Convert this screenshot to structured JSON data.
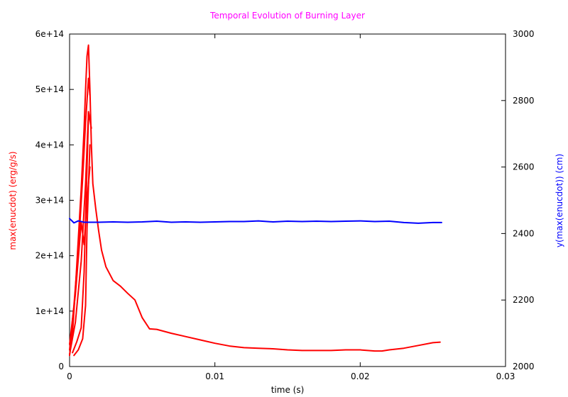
{
  "chart_data": {
    "type": "line",
    "title": "Temporal Evolution of Burning Layer",
    "title_color": "#ff00ff",
    "xlabel": "time (s)",
    "ylabel_left": "max(enucdot) (erg/g/s)",
    "ylabel_left_color": "#ff0000",
    "ylabel_right": "y(max(enucdot)) (cm)",
    "ylabel_right_color": "#0000ff",
    "xlim": [
      0,
      0.03
    ],
    "ylim_left": [
      0,
      600000000000000.0
    ],
    "ylim_right": [
      2000,
      3000
    ],
    "x_ticks": [
      {
        "value": 0,
        "label": "0"
      },
      {
        "value": 0.01,
        "label": "0.01"
      },
      {
        "value": 0.02,
        "label": "0.02"
      },
      {
        "value": 0.03,
        "label": "0.03"
      }
    ],
    "y_left_ticks": [
      {
        "value": 0,
        "label": "0"
      },
      {
        "value": 100000000000000.0,
        "label": "1e+14"
      },
      {
        "value": 200000000000000.0,
        "label": "2e+14"
      },
      {
        "value": 300000000000000.0,
        "label": "3e+14"
      },
      {
        "value": 400000000000000.0,
        "label": "4e+14"
      },
      {
        "value": 500000000000000.0,
        "label": "5e+14"
      },
      {
        "value": 600000000000000.0,
        "label": "6e+14"
      }
    ],
    "y_right_ticks": [
      {
        "value": 2000,
        "label": "2000"
      },
      {
        "value": 2200,
        "label": "2200"
      },
      {
        "value": 2400,
        "label": "2400"
      },
      {
        "value": 2600,
        "label": "2600"
      },
      {
        "value": 2800,
        "label": "2800"
      },
      {
        "value": 3000,
        "label": "3000"
      }
    ],
    "grid": false,
    "series": [
      {
        "axis": "left",
        "color": "#ff0000",
        "x": [
          0,
          0.0002,
          0.0004,
          0.0006,
          0.0008,
          0.001,
          0.0011,
          0.0012,
          0.0013,
          0.0014,
          0.0015,
          0.0016,
          0.0018,
          0.002,
          0.0022,
          0.0025,
          0.003,
          0.0035,
          0.004,
          0.0045,
          0.005,
          0.0055,
          0.006,
          0.007,
          0.008,
          0.009,
          0.01,
          0.011,
          0.012,
          0.013,
          0.014,
          0.015,
          0.016,
          0.017,
          0.018,
          0.019,
          0.02,
          0.021,
          0.0215,
          0.022,
          0.023,
          0.024,
          0.025,
          0.0255
        ],
        "values": [
          20000000000000.0,
          60000000000000.0,
          140000000000000.0,
          230000000000000.0,
          320000000000000.0,
          430000000000000.0,
          500000000000000.0,
          560000000000000.0,
          580000000000000.0,
          500000000000000.0,
          400000000000000.0,
          330000000000000.0,
          285000000000000.0,
          245000000000000.0,
          210000000000000.0,
          180000000000000.0,
          155000000000000.0,
          145000000000000.0,
          132000000000000.0,
          120000000000000.0,
          88000000000000.0,
          68000000000000.0,
          67000000000000.0,
          60000000000000.0,
          54000000000000.0,
          48000000000000.0,
          42000000000000.0,
          37000000000000.0,
          34000000000000.0,
          33000000000000.0,
          32000000000000.0,
          30000000000000.0,
          29000000000000.0,
          29000000000000.0,
          29000000000000.0,
          30000000000000.0,
          30000000000000.0,
          28000000000000.0,
          28000000000000.0,
          30000000000000.0,
          33000000000000.0,
          38000000000000.0,
          43000000000000.0,
          44000000000000.0
        ]
      },
      {
        "axis": "left",
        "color": "#ff0000",
        "x": [
          0,
          0.0003,
          0.0006,
          0.0009,
          0.0011,
          0.0013,
          0.0014
        ],
        "values": [
          30000000000000.0,
          110000000000000.0,
          210000000000000.0,
          340000000000000.0,
          440000000000000.0,
          520000000000000.0,
          490000000000000.0
        ]
      },
      {
        "axis": "left",
        "color": "#ff0000",
        "x": [
          0,
          0.0004,
          0.0008,
          0.0011,
          0.0013,
          0.0015
        ],
        "values": [
          22000000000000.0,
          80000000000000.0,
          190000000000000.0,
          330000000000000.0,
          460000000000000.0,
          430000000000000.0
        ]
      },
      {
        "axis": "left",
        "color": "#ff0000",
        "x": [
          0.0002,
          0.0005,
          0.0008,
          0.001,
          0.0012,
          0.0013
        ],
        "values": [
          25000000000000.0,
          45000000000000.0,
          70000000000000.0,
          170000000000000.0,
          360000000000000.0,
          450000000000000.0
        ]
      },
      {
        "axis": "left",
        "color": "#ff0000",
        "x": [
          0.0003,
          0.0006,
          0.0009,
          0.0011,
          0.0012,
          0.0014
        ],
        "values": [
          20000000000000.0,
          30000000000000.0,
          50000000000000.0,
          110000000000000.0,
          250000000000000.0,
          400000000000000.0
        ]
      },
      {
        "axis": "left",
        "color": "#ff0000",
        "x": [
          0,
          0.0004,
          0.0008,
          0.001,
          0.0012,
          0.0014
        ],
        "values": [
          40000000000000.0,
          130000000000000.0,
          260000000000000.0,
          220000000000000.0,
          300000000000000.0,
          360000000000000.0
        ]
      },
      {
        "axis": "right",
        "color": "#0000ff",
        "x": [
          0,
          0.0003,
          0.0006,
          0.001,
          0.002,
          0.003,
          0.004,
          0.005,
          0.006,
          0.007,
          0.008,
          0.009,
          0.01,
          0.011,
          0.012,
          0.013,
          0.014,
          0.015,
          0.016,
          0.017,
          0.018,
          0.019,
          0.02,
          0.021,
          0.022,
          0.023,
          0.024,
          0.025,
          0.0256
        ],
        "values": [
          2445,
          2432,
          2438,
          2434,
          2434,
          2435,
          2434,
          2435,
          2437,
          2434,
          2435,
          2434,
          2435,
          2436,
          2436,
          2438,
          2435,
          2437,
          2436,
          2437,
          2436,
          2437,
          2438,
          2436,
          2437,
          2433,
          2431,
          2433,
          2433
        ]
      }
    ]
  }
}
